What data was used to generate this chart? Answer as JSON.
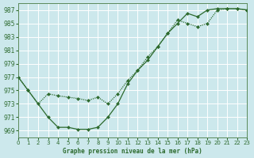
{
  "title": "Graphe pression niveau de la mer (hPa)",
  "bg_color": "#cce8ec",
  "grid_color": "#ffffff",
  "line_color": "#2d6a2d",
  "marker_color": "#2d6a2d",
  "xlim": [
    0,
    23
  ],
  "ylim": [
    968,
    988
  ],
  "yticks": [
    969,
    971,
    973,
    975,
    977,
    979,
    981,
    983,
    985,
    987
  ],
  "xticks": [
    0,
    1,
    2,
    3,
    4,
    5,
    6,
    7,
    8,
    9,
    10,
    11,
    12,
    13,
    14,
    15,
    16,
    17,
    18,
    19,
    20,
    21,
    22,
    23
  ],
  "series1_solid": [
    [
      0,
      977
    ],
    [
      1,
      975
    ],
    [
      3,
      971
    ],
    [
      4,
      969.5
    ],
    [
      5,
      969.5
    ],
    [
      6,
      969.2
    ],
    [
      7,
      969.2
    ],
    [
      8,
      969.5
    ],
    [
      9,
      971
    ],
    [
      10,
      973
    ],
    [
      11,
      976
    ],
    [
      12,
      978
    ],
    [
      13,
      979.5
    ],
    [
      14,
      981.5
    ],
    [
      15,
      983.5
    ],
    [
      16,
      985
    ],
    [
      17,
      986.5
    ],
    [
      18,
      986
    ],
    [
      19,
      987
    ],
    [
      20,
      987.2
    ],
    [
      21,
      987.2
    ],
    [
      22,
      987.2
    ],
    [
      23,
      987
    ]
  ],
  "series2_dotted": [
    [
      0,
      977
    ],
    [
      1,
      975
    ],
    [
      2,
      973
    ],
    [
      3,
      974.5
    ],
    [
      4,
      974.2
    ],
    [
      5,
      974
    ],
    [
      6,
      973.8
    ],
    [
      7,
      973.5
    ],
    [
      8,
      974
    ],
    [
      9,
      973
    ],
    [
      10,
      974.5
    ],
    [
      11,
      976.5
    ],
    [
      12,
      978
    ],
    [
      13,
      980
    ],
    [
      14,
      981.5
    ],
    [
      15,
      983.5
    ],
    [
      16,
      985.5
    ],
    [
      17,
      985
    ],
    [
      18,
      984.5
    ],
    [
      19,
      985
    ],
    [
      20,
      987
    ],
    [
      21,
      987.2
    ],
    [
      22,
      987.2
    ],
    [
      23,
      987
    ]
  ]
}
